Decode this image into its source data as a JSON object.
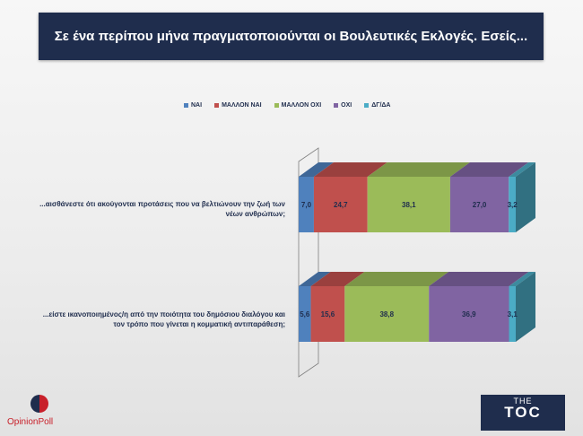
{
  "title": "Σε ένα περίπου μήνα πραγματοποιούνται οι Βουλευτικές Εκλογές. Εσείς...",
  "brand": {
    "left_logo": "OpinionPoll",
    "right_logo_top": "THE",
    "right_logo_main": "TOC"
  },
  "colors": {
    "ΝΑΙ": "#4f81bd",
    "ΜΑΛΛΟΝ ΝΑΙ": "#c0504d",
    "ΜΑΛΛΟΝ ΟΧΙ": "#9bbb59",
    "ΟΧΙ": "#8064a2",
    "ΔΓ/ΔΑ": "#4bacc6"
  },
  "chart_data": {
    "type": "bar",
    "orientation": "horizontal",
    "stacked": true,
    "title": "Σε ένα περίπου μήνα πραγματοποιούνται οι Βουλευτικές Εκλογές. Εσείς...",
    "legend_placement": "top",
    "categories": [
      "...αισθάνεστε ότι ακούγονται προτάσεις που να βελτιώνουν την ζωή των νέων ανθρώπων;",
      "...είστε ικανοποιημένος/η από την ποιότητα του δημόσιου διαλόγου και τον τρόπο που γίνεται η κομματική αντιπαράθεση;"
    ],
    "category_label_lines": [
      [
        "...αισθάνεστε ότι ακούγονται προτάσεις που να βελτιώνουν την ζωή των",
        "νέων ανθρώπων;"
      ],
      [
        "...είστε ικανοποιημένος/η από την ποιότητα του δημόσιου διαλόγου και",
        "τον τρόπο που γίνεται η κομματική αντιπαράθεση;"
      ]
    ],
    "series": [
      {
        "name": "ΝΑΙ",
        "values": [
          7.0,
          5.6
        ],
        "labels": [
          "7,0",
          "5,6"
        ]
      },
      {
        "name": "ΜΑΛΛΟΝ ΝΑΙ",
        "values": [
          24.7,
          15.6
        ],
        "labels": [
          "24,7",
          "15,6"
        ]
      },
      {
        "name": "ΜΑΛΛΟΝ ΟΧΙ",
        "values": [
          38.1,
          38.8
        ],
        "labels": [
          "38,1",
          "38,8"
        ]
      },
      {
        "name": "ΟΧΙ",
        "values": [
          27.0,
          36.9
        ],
        "labels": [
          "27,0",
          "36,9"
        ]
      },
      {
        "name": "ΔΓ/ΔΑ",
        "values": [
          3.2,
          3.1
        ],
        "labels": [
          "3,2",
          "3,1"
        ]
      }
    ],
    "xlim": [
      0,
      100
    ],
    "grid": false
  }
}
